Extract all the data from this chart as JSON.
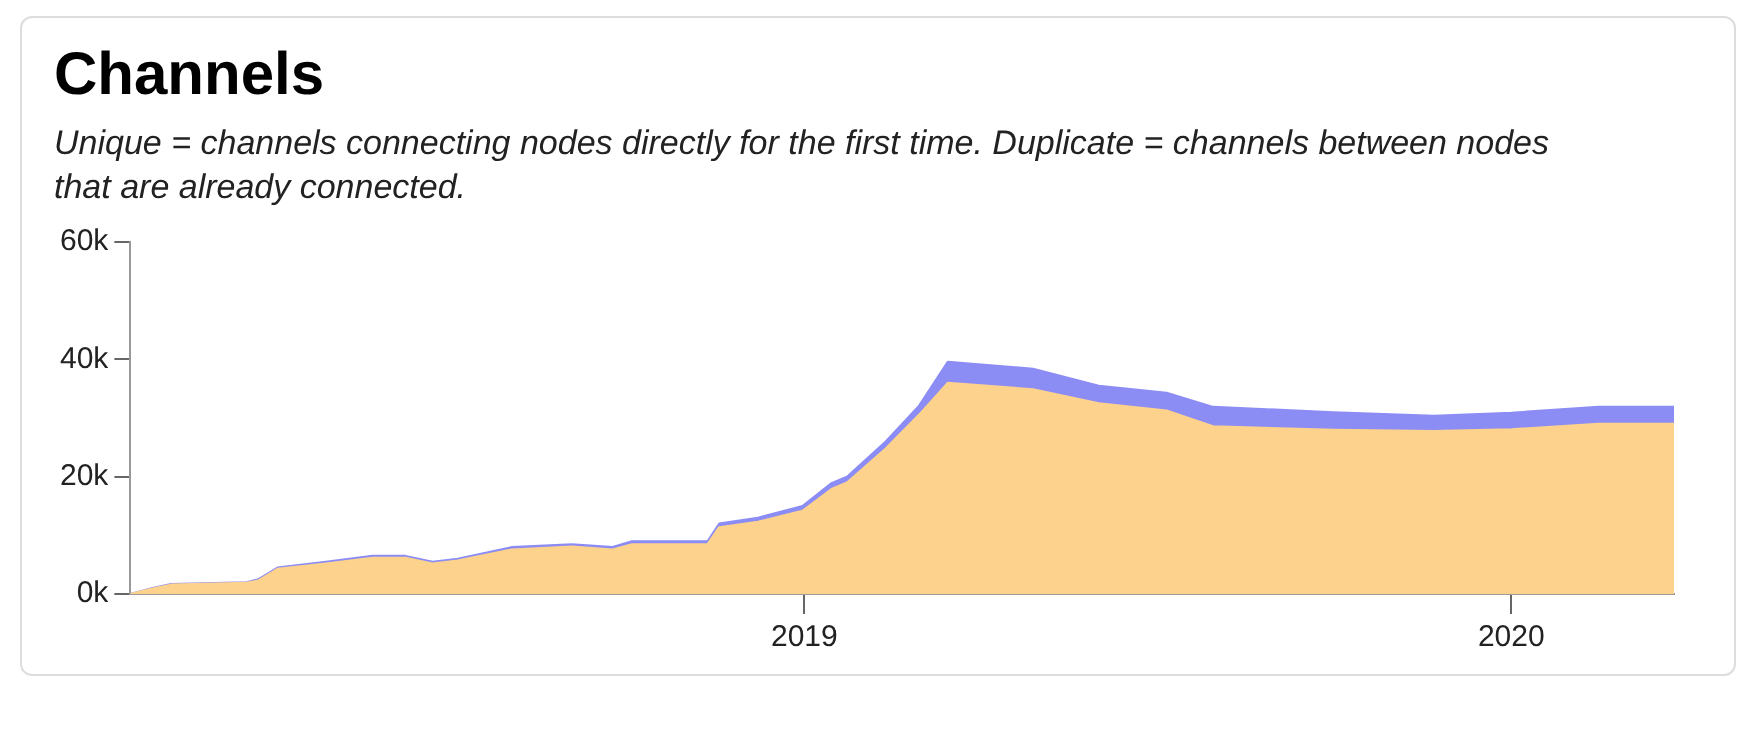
{
  "chart_data": {
    "type": "area",
    "title": "Channels",
    "subtitle": "Unique = channels connecting nodes directly for the first time. Duplicate = channels between nodes that are already connected.",
    "x": [
      "2018-01-18",
      "2018-01-29",
      "2018-02-08",
      "2018-03-19",
      "2018-03-25",
      "2018-04-04",
      "2018-04-29",
      "2018-05-23",
      "2018-06-09",
      "2018-06-23",
      "2018-07-06",
      "2018-08-03",
      "2018-09-03",
      "2018-09-24",
      "2018-10-04",
      "2018-11-12",
      "2018-11-18",
      "2018-12-08",
      "2018-12-31",
      "2019-01-15",
      "2019-01-23",
      "2019-02-12",
      "2019-03-01",
      "2019-03-16",
      "2019-04-29",
      "2019-06-02",
      "2019-07-07",
      "2019-07-31",
      "2019-10-01",
      "2019-11-22",
      "2020-01-01",
      "2020-02-15",
      "2020-03-25"
    ],
    "stacked": true,
    "series": [
      {
        "color": "#fdd28c",
        "values": [
          0,
          900,
          1600,
          1900,
          2300,
          4300,
          5200,
          6200,
          6200,
          5200,
          5700,
          7600,
          8100,
          7600,
          8500,
          8500,
          11400,
          12300,
          14200,
          17900,
          19000,
          24800,
          30500,
          36000,
          34900,
          32500,
          31300,
          28600,
          28000,
          27800,
          28100,
          29000,
          29000
        ]
      },
      {
        "color": "#8c8cf5",
        "values": [
          0,
          100,
          100,
          100,
          200,
          200,
          300,
          300,
          300,
          300,
          300,
          400,
          400,
          400,
          500,
          500,
          600,
          700,
          800,
          1000,
          1000,
          1200,
          1500,
          3600,
          3500,
          3000,
          3000,
          3300,
          3000,
          2600,
          2800,
          2900,
          2900
        ]
      }
    ],
    "xlim": [
      "2018-01-18",
      "2020-03-25"
    ],
    "xticks": [
      "2019",
      "2020"
    ],
    "ylim": [
      0,
      60000
    ],
    "yticks": [
      {
        "value": 0,
        "label": "0k"
      },
      {
        "value": 20000,
        "label": "20k"
      },
      {
        "value": 40000,
        "label": "40k"
      },
      {
        "value": 60000,
        "label": "60k"
      }
    ],
    "grid": false,
    "legend": false
  }
}
